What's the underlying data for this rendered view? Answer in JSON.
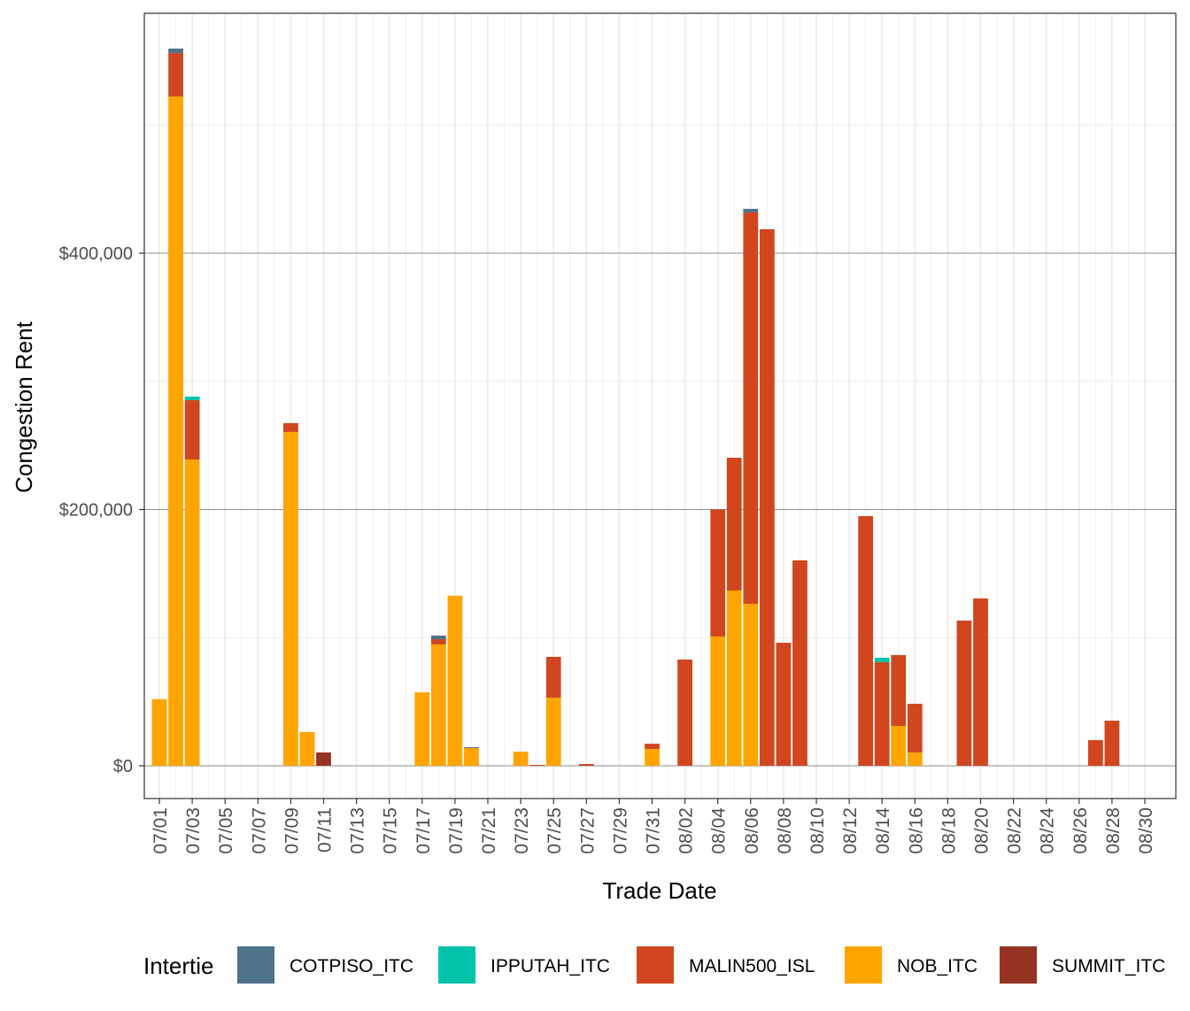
{
  "chart_data": {
    "type": "bar",
    "stacked": true,
    "xlabel": "Trade Date",
    "ylabel": "Congestion Rent",
    "ylim": [
      -25000,
      588000
    ],
    "y_ticks": [
      0,
      200000,
      400000
    ],
    "y_tick_labels": [
      "$0",
      "$200,000",
      "$400,000"
    ],
    "x_range": [
      "07/01",
      "08/30"
    ],
    "x_tick_labels": [
      "07/01",
      "07/03",
      "07/05",
      "07/07",
      "07/09",
      "07/11",
      "07/13",
      "07/15",
      "07/17",
      "07/19",
      "07/21",
      "07/23",
      "07/25",
      "07/27",
      "07/29",
      "07/31",
      "08/02",
      "08/04",
      "08/06",
      "08/08",
      "08/10",
      "08/12",
      "08/14",
      "08/16",
      "08/18",
      "08/20",
      "08/22",
      "08/24",
      "08/26",
      "08/28",
      "08/30"
    ],
    "grid": true,
    "legend": {
      "title": "Intertie",
      "position": "bottom"
    },
    "x": [
      "07/01",
      "07/02",
      "07/03",
      "07/09",
      "07/10",
      "07/11",
      "07/17",
      "07/18",
      "07/19",
      "07/20",
      "07/23",
      "07/24",
      "07/25",
      "07/27",
      "07/31",
      "08/02",
      "08/04",
      "08/05",
      "08/06",
      "08/07",
      "08/08",
      "08/09",
      "08/13",
      "08/14",
      "08/15",
      "08/16",
      "08/19",
      "08/20",
      "08/27",
      "08/28"
    ],
    "series": [
      {
        "name": "COTPISO_ITC",
        "color": "#4E7389",
        "values": [
          0,
          3500,
          0,
          0,
          0,
          0,
          0,
          2800,
          0,
          700,
          0,
          0,
          0,
          0,
          0,
          0,
          0,
          0,
          2800,
          0,
          0,
          0,
          0,
          0,
          0,
          0,
          0,
          0,
          0,
          0
        ]
      },
      {
        "name": "IPPUTAH_ITC",
        "color": "#00C4AA",
        "values": [
          0,
          0,
          2800,
          0,
          0,
          0,
          0,
          0,
          0,
          0,
          0,
          0,
          0,
          0,
          0,
          0,
          0,
          0,
          0,
          0,
          0,
          0,
          0,
          3500,
          0,
          0,
          0,
          0,
          0,
          0
        ]
      },
      {
        "name": "MALIN500_ISL",
        "color": "#D1461F",
        "values": [
          0,
          33900,
          46300,
          6900,
          0,
          0,
          0,
          4100,
          0,
          0,
          0,
          700,
          31800,
          1400,
          4100,
          82900,
          99100,
          103600,
          305400,
          418700,
          96000,
          160300,
          194800,
          80800,
          55300,
          38000,
          113300,
          130600,
          20000,
          35200
        ]
      },
      {
        "name": "NOB_ITC",
        "color": "#FFA400",
        "values": [
          52000,
          522300,
          239000,
          260500,
          26300,
          0,
          57300,
          94700,
          132700,
          13800,
          11000,
          0,
          53200,
          0,
          13100,
          0,
          100900,
          136800,
          126400,
          0,
          0,
          0,
          0,
          0,
          31100,
          10400,
          0,
          0,
          0,
          0
        ]
      },
      {
        "name": "SUMMIT_ITC",
        "color": "#953421",
        "values": [
          0,
          0,
          0,
          0,
          0,
          10400,
          0,
          0,
          0,
          0,
          0,
          0,
          0,
          0,
          0,
          0,
          0,
          0,
          0,
          0,
          0,
          0,
          0,
          0,
          0,
          0,
          0,
          0,
          0,
          0
        ]
      }
    ]
  }
}
